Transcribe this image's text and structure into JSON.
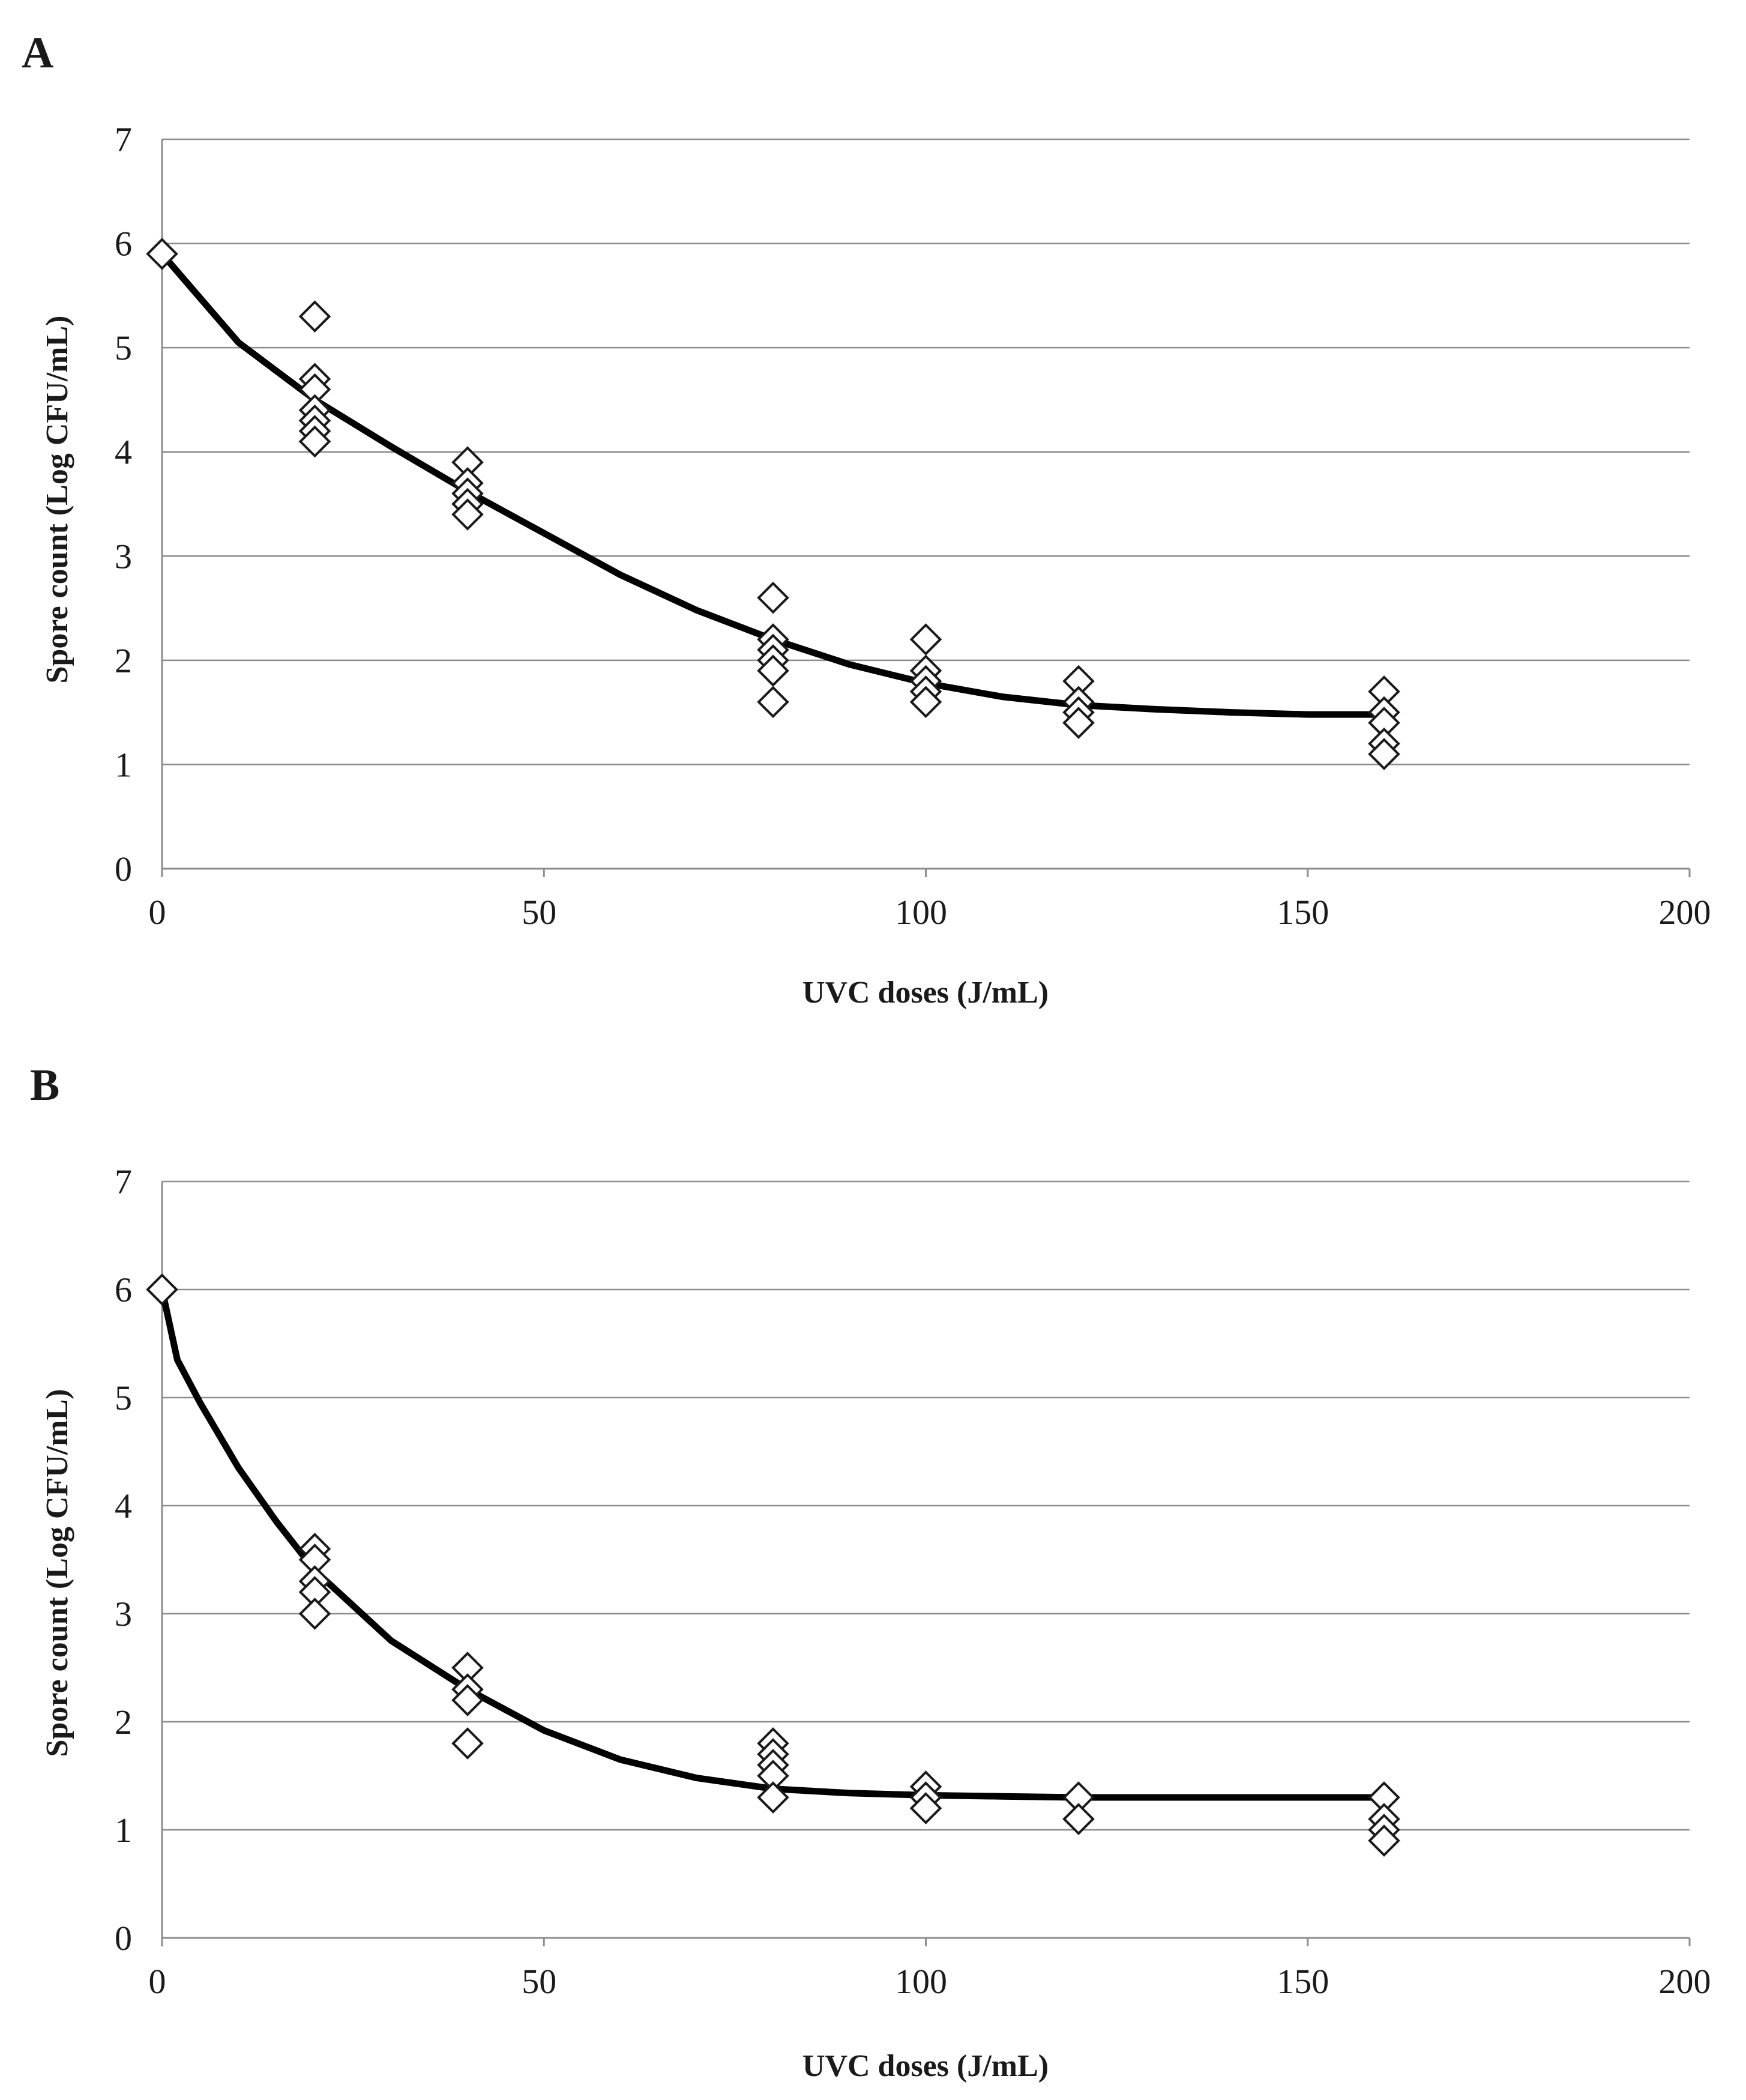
{
  "chart_data": [
    {
      "type": "scatter",
      "panel_label": "A",
      "xlabel": "UVC doses (J/mL)",
      "ylabel": "Spore count (Log CFU/mL)",
      "xlim": [
        0,
        200
      ],
      "ylim": [
        0,
        7
      ],
      "xticks": [
        0,
        50,
        100,
        150,
        200
      ],
      "yticks": [
        0,
        1,
        2,
        3,
        4,
        5,
        6,
        7
      ],
      "grid": "horizontal",
      "marker": "open-diamond",
      "series": [
        {
          "name": "observed",
          "points": [
            [
              0,
              5.9
            ],
            [
              20,
              5.3
            ],
            [
              20,
              4.7
            ],
            [
              20,
              4.6
            ],
            [
              20,
              4.4
            ],
            [
              20,
              4.3
            ],
            [
              20,
              4.2
            ],
            [
              20,
              4.1
            ],
            [
              40,
              3.9
            ],
            [
              40,
              3.7
            ],
            [
              40,
              3.6
            ],
            [
              40,
              3.5
            ],
            [
              40,
              3.4
            ],
            [
              80,
              2.6
            ],
            [
              80,
              2.2
            ],
            [
              80,
              2.1
            ],
            [
              80,
              2.0
            ],
            [
              80,
              1.9
            ],
            [
              80,
              1.6
            ],
            [
              100,
              2.2
            ],
            [
              100,
              1.9
            ],
            [
              100,
              1.8
            ],
            [
              100,
              1.7
            ],
            [
              100,
              1.6
            ],
            [
              120,
              1.8
            ],
            [
              120,
              1.6
            ],
            [
              120,
              1.5
            ],
            [
              120,
              1.4
            ],
            [
              160,
              1.7
            ],
            [
              160,
              1.5
            ],
            [
              160,
              1.4
            ],
            [
              160,
              1.2
            ],
            [
              160,
              1.1
            ]
          ]
        },
        {
          "name": "fitted",
          "line": [
            [
              0,
              5.9
            ],
            [
              10,
              5.05
            ],
            [
              20,
              4.5
            ],
            [
              30,
              4.05
            ],
            [
              40,
              3.62
            ],
            [
              50,
              3.22
            ],
            [
              60,
              2.82
            ],
            [
              70,
              2.48
            ],
            [
              80,
              2.2
            ],
            [
              90,
              1.96
            ],
            [
              100,
              1.78
            ],
            [
              110,
              1.65
            ],
            [
              120,
              1.57
            ],
            [
              130,
              1.53
            ],
            [
              140,
              1.5
            ],
            [
              150,
              1.48
            ],
            [
              160,
              1.48
            ]
          ]
        }
      ]
    },
    {
      "type": "scatter",
      "panel_label": "B",
      "xlabel": "UVC doses (J/mL)",
      "ylabel": "Spore count (Log CFU/mL)",
      "xlim": [
        0,
        200
      ],
      "ylim": [
        0,
        7
      ],
      "xticks": [
        0,
        50,
        100,
        150,
        200
      ],
      "yticks": [
        0,
        1,
        2,
        3,
        4,
        5,
        6,
        7
      ],
      "grid": "horizontal",
      "marker": "open-diamond",
      "series": [
        {
          "name": "observed",
          "points": [
            [
              0,
              6.0
            ],
            [
              20,
              3.6
            ],
            [
              20,
              3.5
            ],
            [
              20,
              3.3
            ],
            [
              20,
              3.2
            ],
            [
              20,
              3.0
            ],
            [
              40,
              2.5
            ],
            [
              40,
              2.3
            ],
            [
              40,
              2.2
            ],
            [
              40,
              1.8
            ],
            [
              80,
              1.8
            ],
            [
              80,
              1.7
            ],
            [
              80,
              1.6
            ],
            [
              80,
              1.5
            ],
            [
              80,
              1.3
            ],
            [
              100,
              1.4
            ],
            [
              100,
              1.3
            ],
            [
              100,
              1.2
            ],
            [
              120,
              1.3
            ],
            [
              120,
              1.1
            ],
            [
              160,
              1.3
            ],
            [
              160,
              1.1
            ],
            [
              160,
              1.0
            ],
            [
              160,
              0.9
            ]
          ]
        },
        {
          "name": "fitted",
          "line": [
            [
              0,
              6.0
            ],
            [
              2,
              5.35
            ],
            [
              5,
              4.95
            ],
            [
              10,
              4.35
            ],
            [
              15,
              3.85
            ],
            [
              20,
              3.4
            ],
            [
              30,
              2.75
            ],
            [
              40,
              2.3
            ],
            [
              50,
              1.92
            ],
            [
              60,
              1.65
            ],
            [
              70,
              1.48
            ],
            [
              80,
              1.38
            ],
            [
              90,
              1.34
            ],
            [
              100,
              1.32
            ],
            [
              110,
              1.31
            ],
            [
              120,
              1.3
            ],
            [
              140,
              1.3
            ],
            [
              160,
              1.3
            ]
          ]
        }
      ]
    }
  ]
}
